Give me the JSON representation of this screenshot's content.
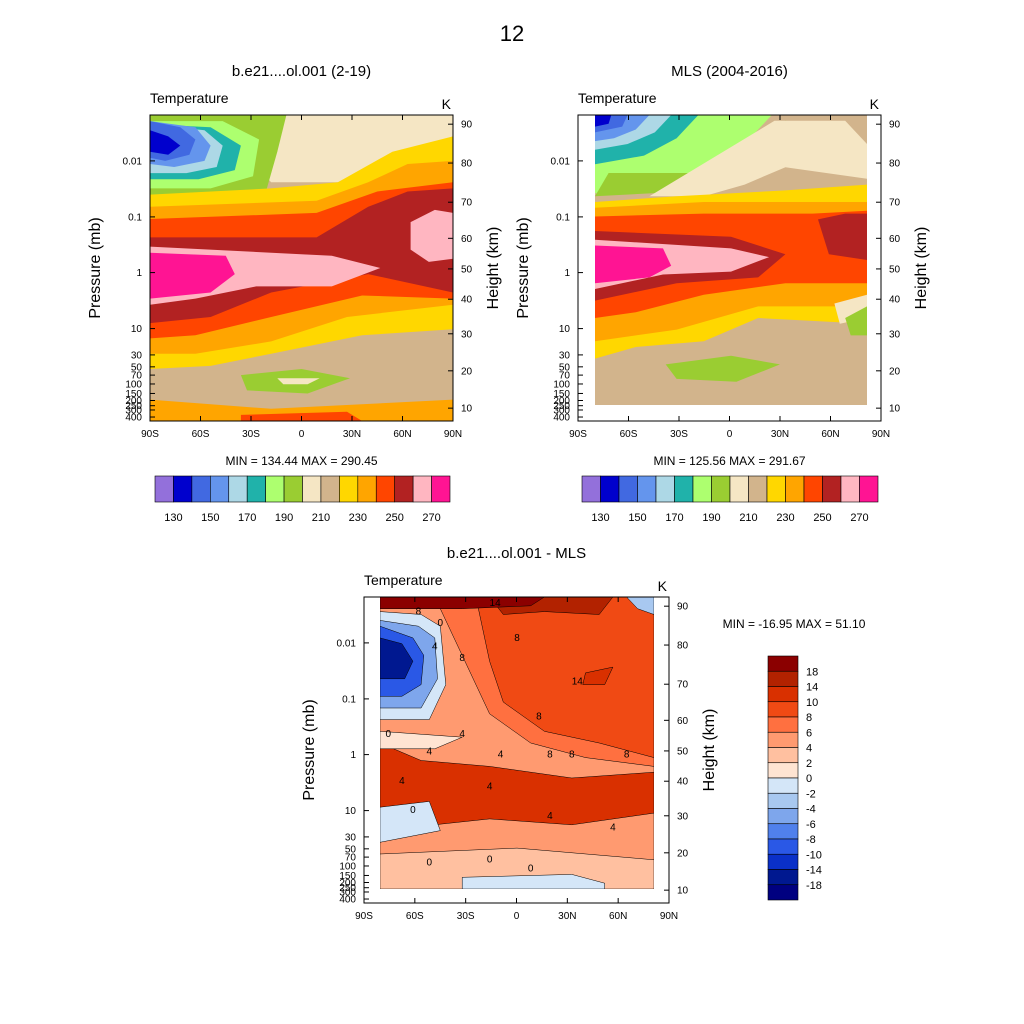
{
  "page_title": "12",
  "chart_data": [
    {
      "type": "contour",
      "title": "b.e21....ol.001 (2-19)",
      "variable": "Temperature",
      "units": "K",
      "ylabel_left": "Pressure (mb)",
      "ylabel_right": "Height (km)",
      "x_ticks": [
        "90S",
        "60S",
        "30S",
        "0",
        "30N",
        "60N",
        "90N"
      ],
      "x_range": [
        -90,
        90
      ],
      "pressure_ticks": [
        "0.01",
        "0.1",
        "1",
        "10",
        "30",
        "50",
        "70",
        "100",
        "150",
        "200",
        "250",
        "300",
        "400"
      ],
      "height_ticks": [
        "90",
        "80",
        "70",
        "60",
        "50",
        "40",
        "30",
        "20",
        "10"
      ],
      "stats": "MIN = 134.44  MAX = 290.45",
      "min": 134.44,
      "max": 290.45,
      "colorbar": {
        "levels": [
          130,
          140,
          150,
          160,
          170,
          180,
          190,
          200,
          210,
          220,
          230,
          240,
          250,
          260,
          270
        ],
        "labels": [
          "130",
          "150",
          "170",
          "190",
          "210",
          "230",
          "250",
          "270"
        ],
        "colors": [
          "#9370DB",
          "#0000CD",
          "#4169E1",
          "#6495ED",
          "#ADD8E6",
          "#20B2AA",
          "#ADFF6F",
          "#9ACD32",
          "#F5E6C4",
          "#D2B48C",
          "#FFD700",
          "#FFA500",
          "#FF4500",
          "#B22222",
          "#FFB6C1",
          "#FF1493"
        ]
      }
    },
    {
      "type": "contour",
      "title": "MLS (2004-2016)",
      "variable": "Temperature",
      "units": "K",
      "ylabel_left": "Pressure (mb)",
      "ylabel_right": "Height (km)",
      "x_ticks": [
        "90S",
        "60S",
        "30S",
        "0",
        "30N",
        "60N",
        "90N"
      ],
      "x_range": [
        -90,
        90
      ],
      "pressure_ticks": [
        "0.01",
        "0.1",
        "1",
        "10",
        "30",
        "50",
        "70",
        "100",
        "150",
        "200",
        "250",
        "300",
        "400"
      ],
      "height_ticks": [
        "90",
        "80",
        "70",
        "60",
        "50",
        "40",
        "30",
        "20",
        "10"
      ],
      "stats": "MIN = 125.56  MAX = 291.67",
      "min": 125.56,
      "max": 291.67,
      "colorbar": {
        "levels": [
          130,
          140,
          150,
          160,
          170,
          180,
          190,
          200,
          210,
          220,
          230,
          240,
          250,
          260,
          270
        ],
        "labels": [
          "130",
          "150",
          "170",
          "190",
          "210",
          "230",
          "250",
          "270"
        ],
        "colors": [
          "#9370DB",
          "#0000CD",
          "#4169E1",
          "#6495ED",
          "#ADD8E6",
          "#20B2AA",
          "#ADFF6F",
          "#9ACD32",
          "#F5E6C4",
          "#D2B48C",
          "#FFD700",
          "#FFA500",
          "#FF4500",
          "#B22222",
          "#FFB6C1",
          "#FF1493"
        ]
      }
    },
    {
      "type": "contour",
      "title": "b.e21....ol.001 - MLS",
      "variable": "Temperature",
      "units": "K",
      "ylabel_left": "Pressure (mb)",
      "ylabel_right": "Height (km)",
      "x_ticks": [
        "90S",
        "60S",
        "30S",
        "0",
        "30N",
        "60N",
        "90N"
      ],
      "x_range": [
        -90,
        90
      ],
      "pressure_ticks": [
        "0.01",
        "0.1",
        "1",
        "10",
        "30",
        "50",
        "70",
        "100",
        "150",
        "200",
        "250",
        "300",
        "400"
      ],
      "height_ticks": [
        "90",
        "80",
        "70",
        "60",
        "50",
        "40",
        "30",
        "20",
        "10"
      ],
      "stats": "MIN = -16.95  MAX =  51.10",
      "min": -16.95,
      "max": 51.1,
      "contour_labels": [
        "14",
        "8",
        "0",
        "4",
        "8",
        "8",
        "14",
        "8",
        "4",
        "8",
        "0",
        "4",
        "4",
        "8",
        "8",
        "4",
        "4",
        "4",
        "0",
        "4",
        "0",
        "0",
        "0"
      ],
      "colorbar": {
        "labels": [
          "18",
          "14",
          "10",
          "8",
          "6",
          "4",
          "2",
          "0",
          "-2",
          "-4",
          "-6",
          "-8",
          "-10",
          "-14",
          "-18"
        ],
        "colors": [
          "#8B0000",
          "#B22200",
          "#D93000",
          "#F04A14",
          "#FF7040",
          "#FF9A70",
          "#FFC0A0",
          "#FFE4D2",
          "#D4E6F8",
          "#A8C8F0",
          "#7EA6EC",
          "#5080EC",
          "#2A58E6",
          "#0A30C8",
          "#001890",
          "#000080"
        ]
      }
    }
  ]
}
